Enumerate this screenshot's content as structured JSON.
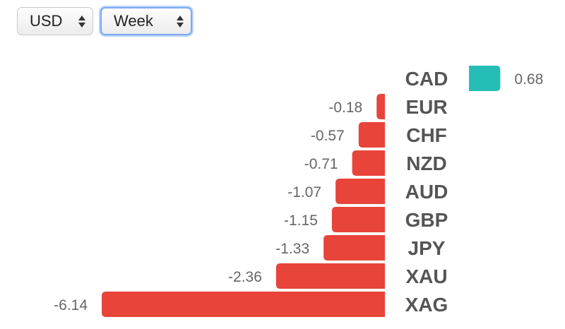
{
  "controls": {
    "currency_select": {
      "value": "USD"
    },
    "period_select": {
      "value": "Week"
    }
  },
  "colors": {
    "positive": "#26bdb6",
    "negative": "#e8443a",
    "label": "#555555",
    "value_text": "#666666"
  },
  "chart_data": {
    "type": "bar",
    "orientation": "horizontal",
    "categories": [
      "CAD",
      "EUR",
      "CHF",
      "NZD",
      "AUD",
      "GBP",
      "JPY",
      "XAU",
      "XAG"
    ],
    "values": [
      0.68,
      -0.18,
      -0.57,
      -0.71,
      -1.07,
      -1.15,
      -1.33,
      -2.36,
      -6.14
    ],
    "value_labels": [
      "0.68",
      "-0.18",
      "-0.57",
      "-0.71",
      "-1.07",
      "-1.15",
      "-1.33",
      "-2.36",
      "-6.14"
    ],
    "title": "",
    "xlabel": "",
    "ylabel": "",
    "grid": false,
    "legend": "none"
  }
}
